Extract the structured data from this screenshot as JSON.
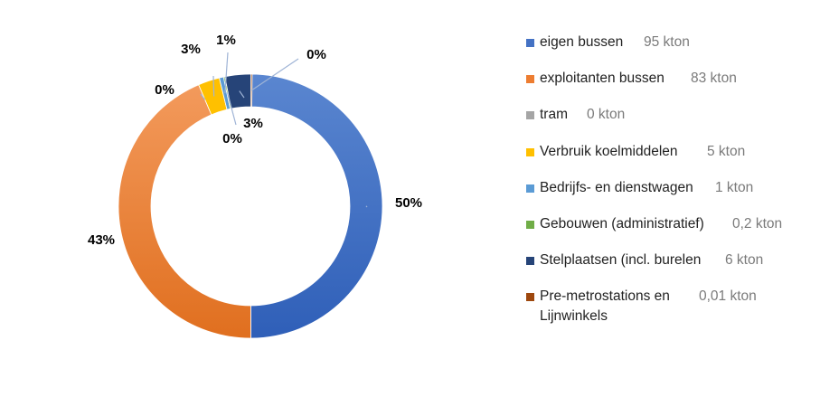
{
  "chart_data": {
    "type": "pie",
    "subtype": "donut",
    "title": "",
    "slices": [
      {
        "name": "eigen bussen",
        "value_label": "95 kton",
        "value": 95,
        "percent_label": "50%",
        "color": "#4472C4"
      },
      {
        "name": "exploitanten bussen",
        "value_label": "83 kton",
        "value": 83,
        "percent_label": "43%",
        "color": "#ED7D31"
      },
      {
        "name": "tram",
        "value_label": "0 kton",
        "value": 0,
        "percent_label": "0%",
        "color": "#A5A5A5"
      },
      {
        "name": "Verbruik koelmiddelen",
        "value_label": "5 kton",
        "value": 5,
        "percent_label": "3%",
        "color": "#FFC000"
      },
      {
        "name": "Bedrijfs- en dienstwagen",
        "value_label": "1 kton",
        "value": 1,
        "percent_label": "1%",
        "color": "#5B9BD5"
      },
      {
        "name": "Gebouwen (administratief)",
        "value_label": "0,2 kton",
        "value": 0.2,
        "percent_label": "0%",
        "color": "#70AD47"
      },
      {
        "name": "Stelplaatsen (incl. burelen",
        "value_label": "6 kton",
        "value": 6,
        "percent_label": "3%",
        "color": "#264478"
      },
      {
        "name": "Pre-metrostations en Lijnwinkels",
        "value_label": "0,01 kton",
        "value": 0.01,
        "percent_label": "0%",
        "color": "#9E480E"
      }
    ],
    "legend_position": "right"
  }
}
